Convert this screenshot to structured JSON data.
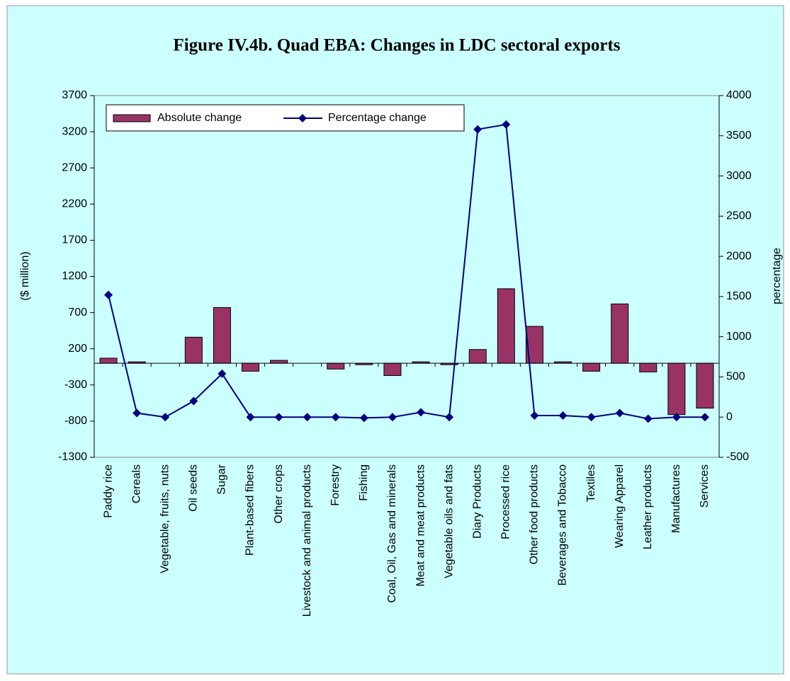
{
  "chart_data": {
    "type": "bar_line",
    "title": "Figure IV.4b. Quad EBA: Changes in LDC sectoral exports",
    "ylabel": "($ million)",
    "y2label": "percentage",
    "categories": [
      "Paddy rice",
      "Cereals",
      "Vegetable, fruits, nuts",
      "Oil seeds",
      "Sugar",
      "Plant-based fibers",
      "Other crops",
      "Livestock and animal products",
      "Forestry",
      "Fishing",
      "Coal, Oil, Gas and minerals",
      "Meat and meat products",
      "Vegetable oils and fats",
      "Diary Products",
      "Processed rice",
      "Other food products",
      "Beverages and Tobacco",
      "Textiles",
      "Wearing Apparel",
      "Leather products",
      "Manufactures",
      "Services"
    ],
    "series": [
      {
        "name": "Absolute change",
        "type": "bar",
        "color": "#993366",
        "values": [
          70,
          20,
          0,
          360,
          770,
          -110,
          40,
          0,
          -80,
          -20,
          -170,
          20,
          -20,
          190,
          1030,
          510,
          20,
          -110,
          820,
          -120,
          -710,
          -620
        ]
      },
      {
        "name": "Percentage change",
        "type": "line",
        "axis": "y2",
        "color": "#000080",
        "values": [
          1520,
          50,
          0,
          200,
          540,
          0,
          0,
          0,
          0,
          -10,
          0,
          60,
          0,
          3580,
          3640,
          20,
          20,
          0,
          50,
          -20,
          0,
          0
        ]
      }
    ],
    "ylim": [
      -1300,
      3700
    ],
    "yticks": [
      3700,
      3200,
      2700,
      2200,
      1700,
      1200,
      700,
      200,
      -300,
      -800,
      -1300
    ],
    "y2lim": [
      -500,
      4000
    ],
    "y2ticks": [
      4000,
      3500,
      3000,
      2500,
      2000,
      1500,
      1000,
      500,
      0,
      -500
    ],
    "legend": "top-left"
  }
}
